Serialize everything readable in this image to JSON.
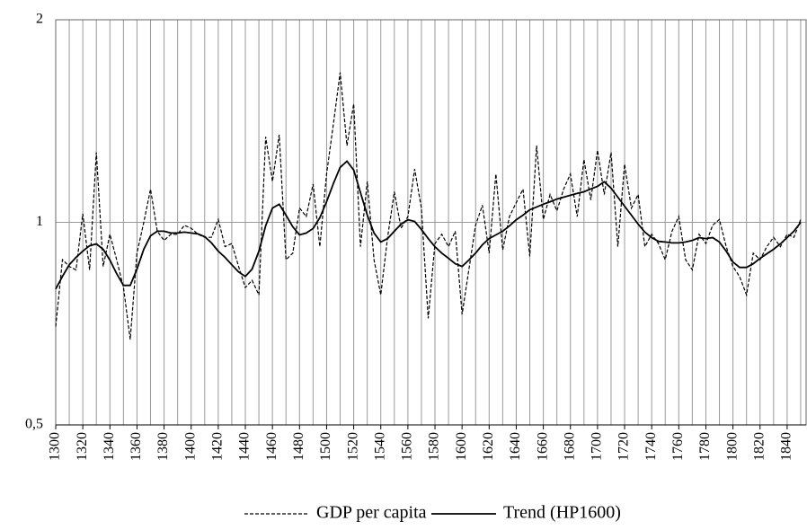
{
  "chart_data": {
    "type": "line",
    "x": [
      1300,
      1305,
      1310,
      1315,
      1320,
      1325,
      1330,
      1335,
      1340,
      1345,
      1350,
      1355,
      1360,
      1365,
      1370,
      1375,
      1380,
      1385,
      1390,
      1395,
      1400,
      1405,
      1410,
      1415,
      1420,
      1425,
      1430,
      1435,
      1440,
      1445,
      1450,
      1455,
      1460,
      1465,
      1470,
      1475,
      1480,
      1485,
      1490,
      1495,
      1500,
      1505,
      1510,
      1515,
      1520,
      1525,
      1530,
      1535,
      1540,
      1545,
      1550,
      1555,
      1560,
      1565,
      1570,
      1575,
      1580,
      1585,
      1590,
      1595,
      1600,
      1605,
      1610,
      1615,
      1620,
      1625,
      1630,
      1635,
      1640,
      1645,
      1650,
      1655,
      1660,
      1665,
      1670,
      1675,
      1680,
      1685,
      1690,
      1695,
      1700,
      1705,
      1710,
      1715,
      1720,
      1725,
      1730,
      1735,
      1740,
      1745,
      1750,
      1755,
      1760,
      1765,
      1770,
      1775,
      1780,
      1785,
      1790,
      1795,
      1800,
      1805,
      1810,
      1815,
      1820,
      1825,
      1830,
      1835,
      1840,
      1845,
      1850
    ],
    "series": [
      {
        "name": "GDP per capita",
        "color": "#000000",
        "dash": "4 2",
        "values": [
          0.7,
          0.88,
          0.86,
          0.85,
          1.03,
          0.85,
          1.27,
          0.86,
          0.96,
          0.88,
          0.8,
          0.67,
          0.9,
          1.0,
          1.12,
          0.97,
          0.94,
          0.96,
          0.96,
          0.99,
          0.98,
          0.96,
          0.95,
          0.95,
          1.01,
          0.92,
          0.93,
          0.86,
          0.8,
          0.82,
          0.78,
          1.34,
          1.15,
          1.35,
          0.88,
          0.9,
          1.05,
          1.02,
          1.14,
          0.92,
          1.18,
          1.4,
          1.67,
          1.3,
          1.5,
          0.92,
          1.15,
          0.88,
          0.78,
          0.95,
          1.11,
          0.98,
          1.02,
          1.2,
          1.05,
          0.72,
          0.93,
          0.96,
          0.92,
          0.97,
          0.73,
          0.85,
          0.99,
          1.06,
          0.9,
          1.18,
          0.91,
          1.02,
          1.07,
          1.12,
          0.89,
          1.3,
          1.01,
          1.1,
          1.04,
          1.12,
          1.18,
          1.02,
          1.24,
          1.08,
          1.28,
          1.1,
          1.27,
          0.92,
          1.22,
          1.05,
          1.1,
          0.92,
          0.96,
          0.93,
          0.88,
          0.97,
          1.02,
          0.88,
          0.85,
          0.96,
          0.93,
          0.99,
          1.01,
          0.92,
          0.86,
          0.83,
          0.78,
          0.9,
          0.88,
          0.92,
          0.95,
          0.92,
          0.96,
          0.95,
          1.01
        ]
      },
      {
        "name": "Trend (HP1600)",
        "color": "#000000",
        "dash": "none",
        "values": [
          0.796,
          0.831,
          0.865,
          0.887,
          0.906,
          0.923,
          0.929,
          0.912,
          0.879,
          0.839,
          0.806,
          0.806,
          0.852,
          0.912,
          0.955,
          0.97,
          0.97,
          0.964,
          0.964,
          0.967,
          0.964,
          0.961,
          0.952,
          0.932,
          0.906,
          0.887,
          0.865,
          0.844,
          0.831,
          0.852,
          0.906,
          0.988,
          1.05,
          1.064,
          1.025,
          0.985,
          0.958,
          0.964,
          0.979,
          1.016,
          1.073,
          1.142,
          1.207,
          1.233,
          1.196,
          1.107,
          1.025,
          0.964,
          0.935,
          0.946,
          0.97,
          0.994,
          1.009,
          1.003,
          0.976,
          0.946,
          0.92,
          0.9,
          0.884,
          0.868,
          0.86,
          0.879,
          0.9,
          0.926,
          0.946,
          0.958,
          0.97,
          0.988,
          1.009,
          1.025,
          1.044,
          1.054,
          1.064,
          1.073,
          1.083,
          1.09,
          1.097,
          1.104,
          1.11,
          1.121,
          1.131,
          1.149,
          1.124,
          1.09,
          1.057,
          1.025,
          0.994,
          0.967,
          0.949,
          0.937,
          0.935,
          0.932,
          0.932,
          0.935,
          0.94,
          0.949,
          0.946,
          0.949,
          0.935,
          0.906,
          0.873,
          0.857,
          0.857,
          0.868,
          0.884,
          0.898,
          0.912,
          0.929,
          0.949,
          0.97,
          1.0
        ]
      }
    ],
    "xlim": [
      1300,
      1854
    ],
    "xticks": [
      1300,
      1320,
      1340,
      1360,
      1380,
      1400,
      1420,
      1440,
      1460,
      1480,
      1500,
      1520,
      1540,
      1560,
      1580,
      1600,
      1620,
      1640,
      1660,
      1680,
      1700,
      1720,
      1740,
      1760,
      1780,
      1800,
      1820,
      1840
    ],
    "x_minor_ticks": [
      1310,
      1330,
      1350,
      1370,
      1390,
      1410,
      1430,
      1450,
      1470,
      1490,
      1510,
      1530,
      1550,
      1570,
      1590,
      1610,
      1630,
      1650,
      1670,
      1690,
      1710,
      1730,
      1750,
      1770,
      1790,
      1810,
      1830,
      1850
    ],
    "ylim": [
      0.5,
      2
    ],
    "yticks": [
      {
        "value": 0.5,
        "label": "0,5"
      },
      1,
      2
    ],
    "y_log": true,
    "grid": true,
    "legend": "bottom"
  }
}
